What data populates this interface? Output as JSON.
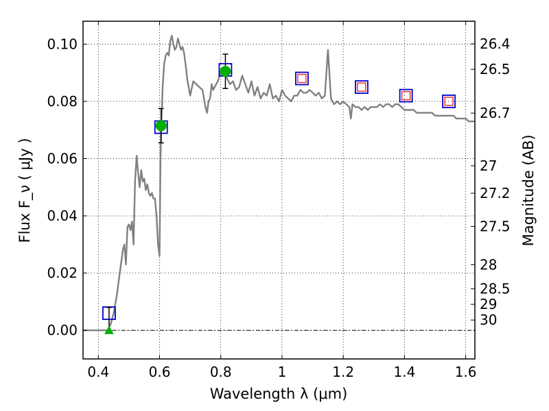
{
  "chart_data": {
    "type": "line",
    "title": "",
    "xlabel": "Wavelength  λ (μm)",
    "ylabel": "Flux  F_ν  ( μJy )",
    "y2label": "Magnitude (AB)",
    "xlim": [
      0.35,
      1.63
    ],
    "ylim": [
      -0.01,
      0.108
    ],
    "grid": true,
    "xticks": [
      0.4,
      0.6,
      0.8,
      1.0,
      1.2,
      1.4,
      1.6
    ],
    "xtick_labels": [
      "0.4",
      "0.6",
      "0.8",
      "1",
      "1.2",
      "1.4",
      "1.6"
    ],
    "yticks": [
      0.0,
      0.02,
      0.04,
      0.06,
      0.08,
      0.1
    ],
    "ytick_labels": [
      "0.00",
      "0.02",
      "0.04",
      "0.06",
      "0.08",
      "0.10"
    ],
    "y2ticks": [
      {
        "label": "26.4",
        "flux": 0.1001
      },
      {
        "label": "26.5",
        "flux": 0.0912
      },
      {
        "label": "26.7",
        "flux": 0.0759
      },
      {
        "label": "27",
        "flux": 0.0575
      },
      {
        "label": "27.2",
        "flux": 0.0479
      },
      {
        "label": "27.5",
        "flux": 0.0363
      },
      {
        "label": "28",
        "flux": 0.0229
      },
      {
        "label": "28.5",
        "flux": 0.0145
      },
      {
        "label": "29",
        "flux": 0.0091
      },
      {
        "label": "30",
        "flux": 0.0036
      }
    ],
    "series": [
      {
        "kind": "line",
        "color": "#808080",
        "x": [
          0.35,
          0.43,
          0.44,
          0.45,
          0.46,
          0.465,
          0.47,
          0.475,
          0.48,
          0.485,
          0.49,
          0.495,
          0.5,
          0.505,
          0.51,
          0.515,
          0.52,
          0.525,
          0.53,
          0.535,
          0.54,
          0.545,
          0.55,
          0.555,
          0.56,
          0.565,
          0.57,
          0.575,
          0.58,
          0.585,
          0.59,
          0.595,
          0.6,
          0.603,
          0.605,
          0.607,
          0.61,
          0.615,
          0.62,
          0.625,
          0.63,
          0.635,
          0.64,
          0.645,
          0.65,
          0.655,
          0.66,
          0.665,
          0.67,
          0.675,
          0.68,
          0.685,
          0.69,
          0.7,
          0.71,
          0.72,
          0.73,
          0.74,
          0.745,
          0.75,
          0.755,
          0.76,
          0.765,
          0.77,
          0.775,
          0.78,
          0.79,
          0.8,
          0.81,
          0.82,
          0.83,
          0.84,
          0.85,
          0.86,
          0.87,
          0.88,
          0.89,
          0.9,
          0.91,
          0.92,
          0.93,
          0.94,
          0.95,
          0.96,
          0.97,
          0.98,
          0.99,
          1.0,
          1.01,
          1.02,
          1.03,
          1.04,
          1.05,
          1.06,
          1.07,
          1.08,
          1.09,
          1.1,
          1.11,
          1.12,
          1.13,
          1.14,
          1.145,
          1.15,
          1.16,
          1.17,
          1.18,
          1.19,
          1.2,
          1.21,
          1.22,
          1.225,
          1.23,
          1.24,
          1.25,
          1.26,
          1.27,
          1.28,
          1.29,
          1.3,
          1.31,
          1.32,
          1.33,
          1.34,
          1.35,
          1.36,
          1.37,
          1.38,
          1.39,
          1.4,
          1.41,
          1.42,
          1.43,
          1.44,
          1.45,
          1.46,
          1.47,
          1.48,
          1.49,
          1.5,
          1.51,
          1.52,
          1.53,
          1.54,
          1.55,
          1.56,
          1.57,
          1.58,
          1.59,
          1.6,
          1.61,
          1.62,
          1.63
        ],
        "y": [
          0.0,
          0.0,
          0.002,
          0.006,
          0.012,
          0.016,
          0.02,
          0.024,
          0.028,
          0.03,
          0.023,
          0.036,
          0.037,
          0.035,
          0.038,
          0.03,
          0.052,
          0.061,
          0.055,
          0.05,
          0.056,
          0.052,
          0.053,
          0.049,
          0.051,
          0.048,
          0.047,
          0.048,
          0.046,
          0.046,
          0.04,
          0.03,
          0.026,
          0.06,
          0.07,
          0.075,
          0.085,
          0.093,
          0.096,
          0.097,
          0.096,
          0.101,
          0.103,
          0.1,
          0.098,
          0.099,
          0.102,
          0.1,
          0.098,
          0.099,
          0.097,
          0.093,
          0.088,
          0.082,
          0.087,
          0.086,
          0.085,
          0.084,
          0.081,
          0.078,
          0.076,
          0.08,
          0.081,
          0.086,
          0.084,
          0.085,
          0.087,
          0.09,
          0.092,
          0.088,
          0.086,
          0.087,
          0.084,
          0.085,
          0.089,
          0.086,
          0.083,
          0.087,
          0.082,
          0.085,
          0.081,
          0.083,
          0.082,
          0.086,
          0.081,
          0.082,
          0.08,
          0.084,
          0.082,
          0.081,
          0.08,
          0.082,
          0.082,
          0.084,
          0.083,
          0.083,
          0.084,
          0.083,
          0.082,
          0.083,
          0.081,
          0.082,
          0.09,
          0.098,
          0.081,
          0.079,
          0.08,
          0.079,
          0.08,
          0.079,
          0.078,
          0.074,
          0.079,
          0.078,
          0.078,
          0.077,
          0.078,
          0.077,
          0.078,
          0.078,
          0.078,
          0.079,
          0.078,
          0.079,
          0.079,
          0.078,
          0.079,
          0.079,
          0.078,
          0.077,
          0.077,
          0.077,
          0.077,
          0.076,
          0.076,
          0.076,
          0.076,
          0.076,
          0.076,
          0.075,
          0.075,
          0.075,
          0.075,
          0.075,
          0.075,
          0.075,
          0.074,
          0.074,
          0.074,
          0.074,
          0.073,
          0.073,
          0.073
        ]
      },
      {
        "kind": "model-boxes",
        "color": "#0000cc",
        "x": [
          0.435,
          0.605,
          0.815,
          1.065,
          1.26,
          1.405,
          1.545
        ],
        "y": [
          0.006,
          0.071,
          0.091,
          0.088,
          0.085,
          0.082,
          0.08
        ]
      },
      {
        "kind": "obs-boxes",
        "color": "#e8252b",
        "x": [
          1.065,
          1.26,
          1.405,
          1.545
        ],
        "y": [
          0.088,
          0.085,
          0.082,
          0.08
        ]
      },
      {
        "kind": "detections",
        "color": "#00b000",
        "x": [
          0.605,
          0.815
        ],
        "y": [
          0.0715,
          0.0905
        ],
        "err": [
          0.006,
          0.006
        ]
      },
      {
        "kind": "upper-limit",
        "color": "#00b000",
        "x": [
          0.435
        ],
        "y": [
          0.0
        ],
        "err_top": [
          0.008
        ]
      }
    ]
  }
}
